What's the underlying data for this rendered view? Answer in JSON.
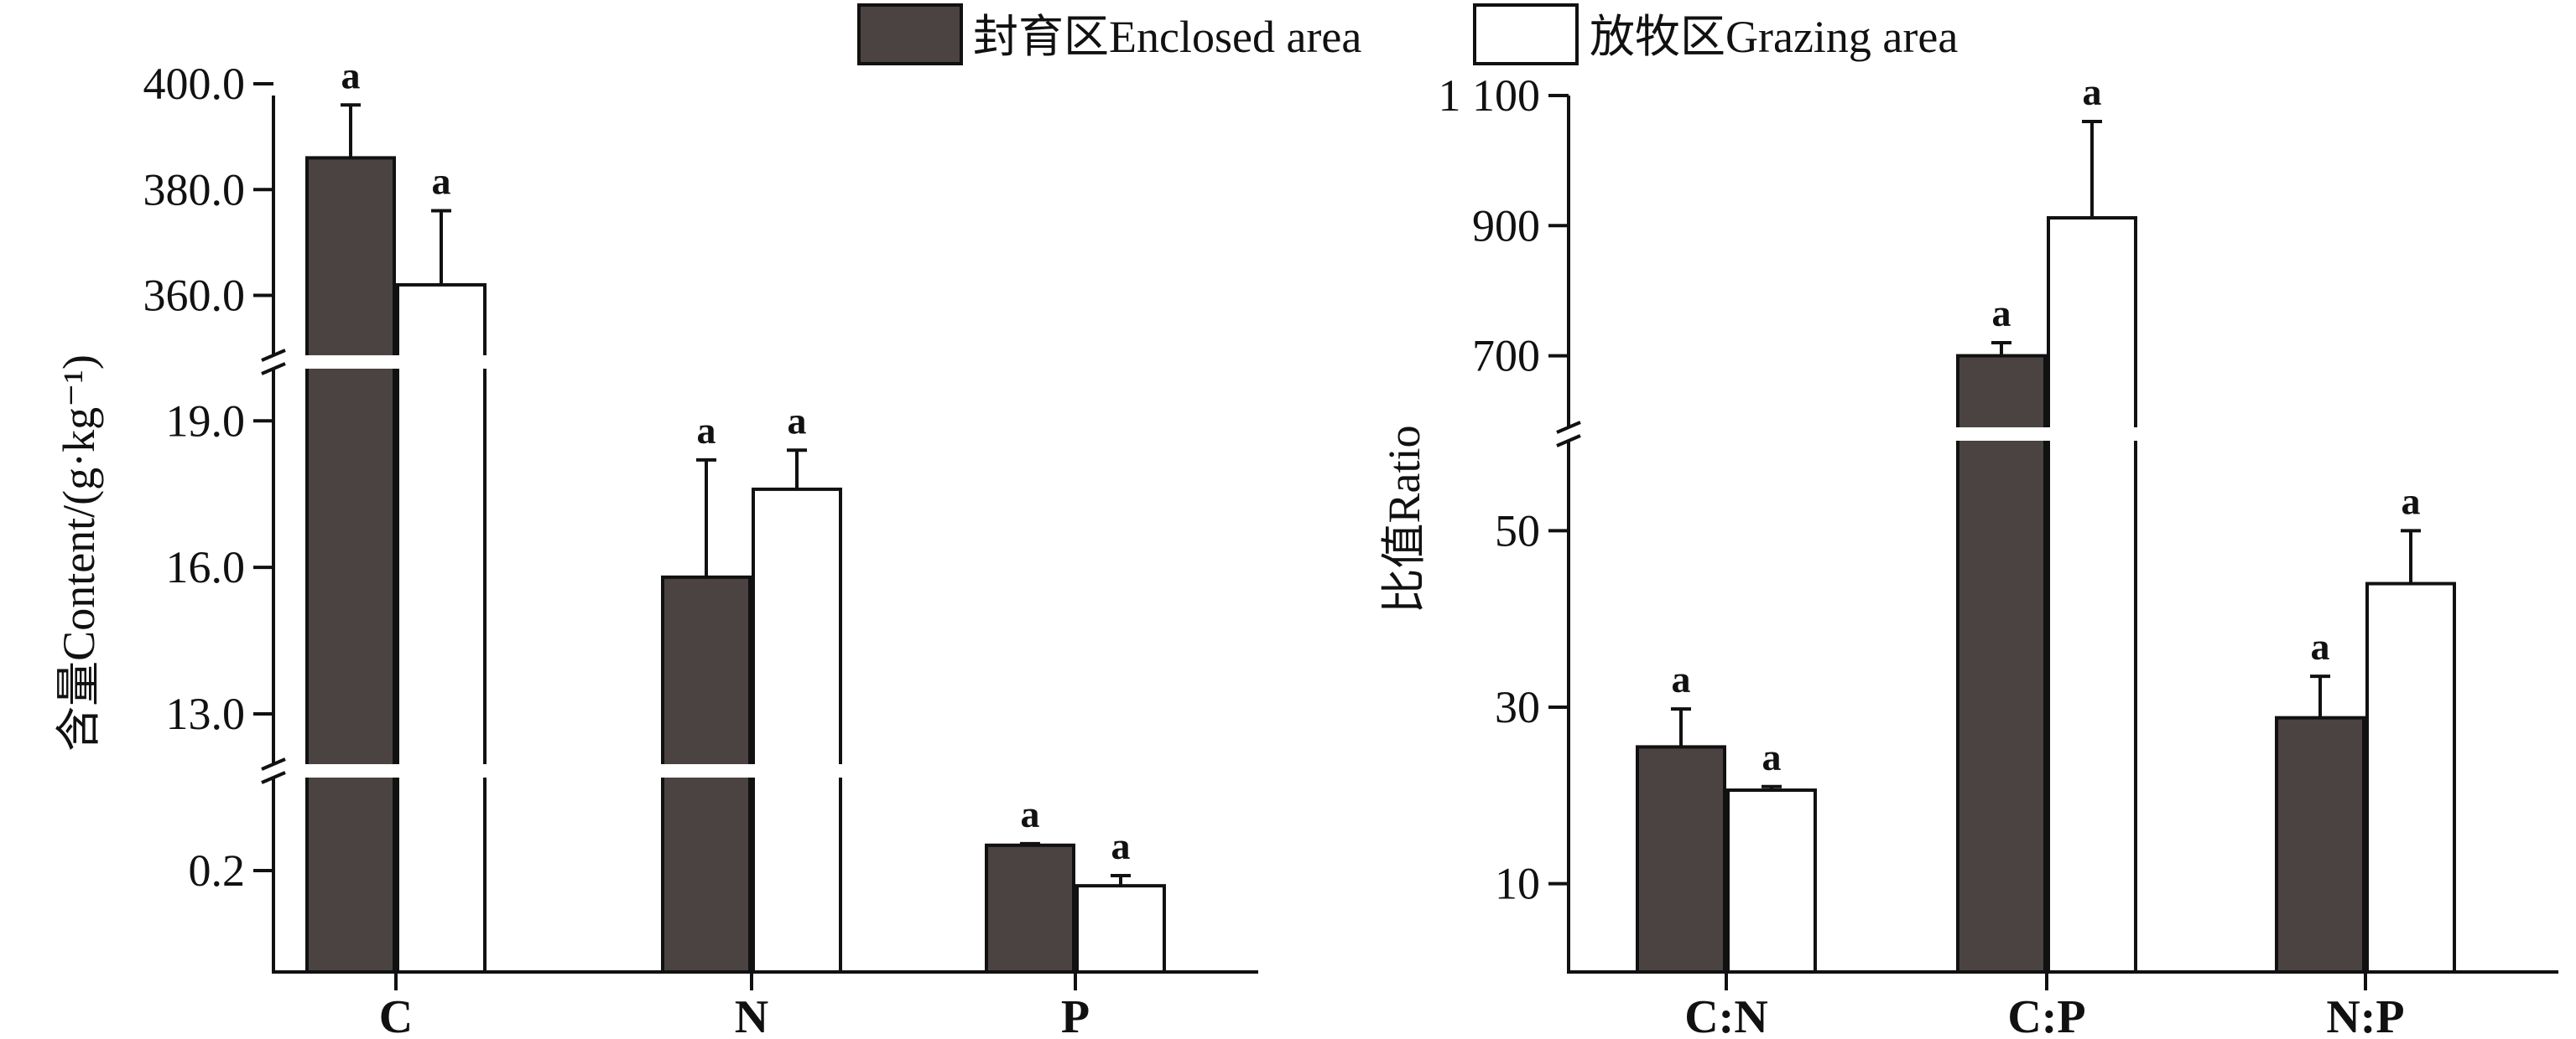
{
  "legend": {
    "enclosed_label": "封育区Enclosed area",
    "grazing_label": "放牧区Grazing area"
  },
  "colors": {
    "enclosed": "#4b4341",
    "grazing": "#ffffff",
    "stroke": "#111111"
  },
  "chart_data": [
    {
      "type": "bar",
      "ylabel": "含量Content/(g·kg⁻¹)",
      "categories": [
        "C",
        "N",
        "P"
      ],
      "broken_axis": true,
      "segments": [
        {
          "ylim": [
            0,
            0.4
          ],
          "ticks": [
            "0.2"
          ]
        },
        {
          "ylim": [
            11.8,
            20.0
          ],
          "ticks": [
            "13.0",
            "16.0",
            "19.0"
          ]
        },
        {
          "ylim": [
            349.0,
            400.0
          ],
          "ticks": [
            "360.0",
            "380.0",
            "400.0"
          ]
        }
      ],
      "series": [
        {
          "name": "封育区Enclosed area",
          "values": [
            386.0,
            15.8,
            0.25
          ],
          "errors": [
            10.0,
            2.4,
            0.003
          ],
          "significance": [
            "a",
            "a",
            "a"
          ]
        },
        {
          "name": "放牧区Grazing area",
          "values": [
            362.0,
            17.6,
            0.17
          ],
          "errors": [
            14.0,
            0.8,
            0.02
          ],
          "significance": [
            "a",
            "a",
            "a"
          ]
        }
      ]
    },
    {
      "type": "bar",
      "ylabel": "比值Ratio",
      "categories": [
        "C:N",
        "C:P",
        "N:P"
      ],
      "broken_axis": true,
      "segments": [
        {
          "ylim": [
            0,
            60
          ],
          "ticks": [
            "10",
            "30",
            "50"
          ]
        },
        {
          "ylim": [
            590,
            1100
          ],
          "ticks": [
            "700",
            "900",
            "1 100"
          ]
        }
      ],
      "series": [
        {
          "name": "封育区Enclosed area",
          "values": [
            25.5,
            700,
            28.8
          ],
          "errors": [
            4.3,
            20,
            4.7
          ],
          "significance": [
            "a",
            "a",
            "a"
          ]
        },
        {
          "name": "放牧区Grazing area",
          "values": [
            20.6,
            912,
            44.0
          ],
          "errors": [
            0.4,
            148,
            6.0
          ],
          "significance": [
            "a",
            "a",
            "a"
          ]
        }
      ]
    }
  ]
}
